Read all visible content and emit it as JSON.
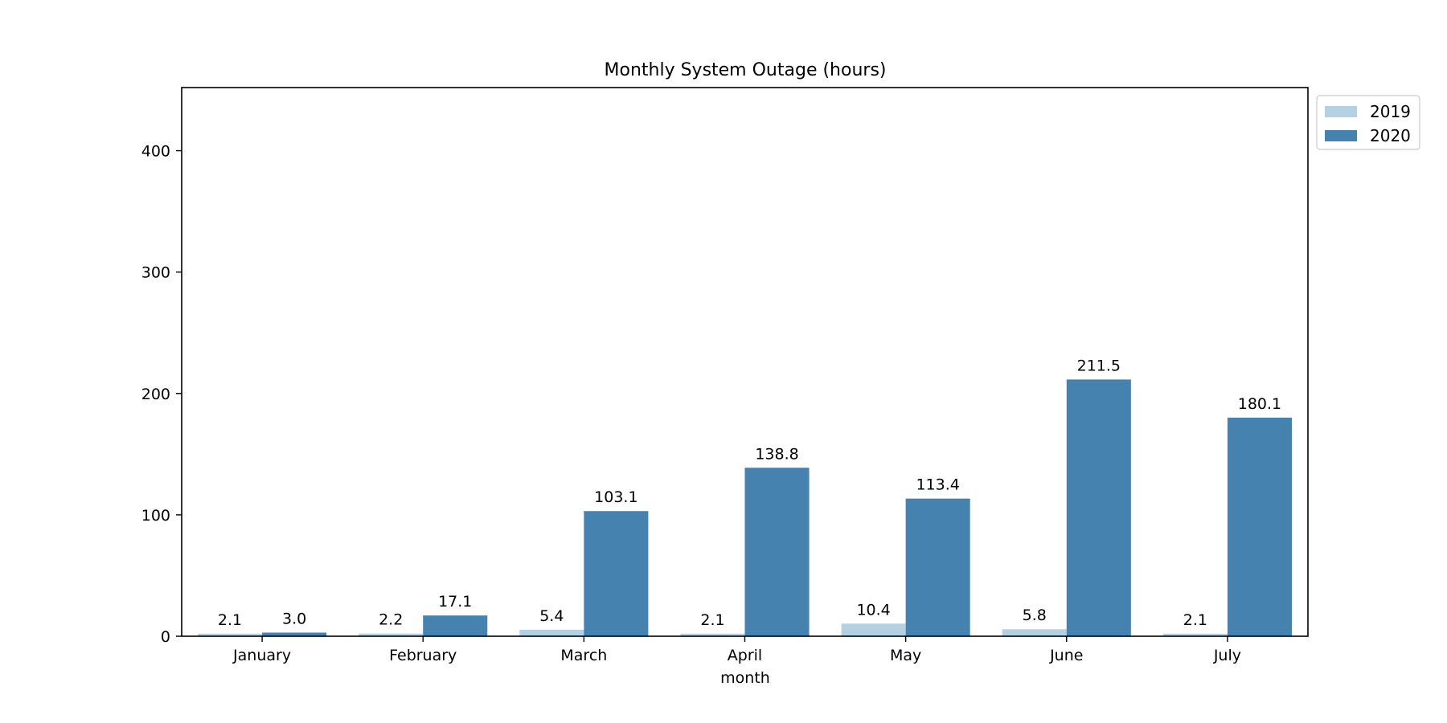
{
  "chart_data": {
    "type": "bar",
    "title": "Monthly System Outage (hours)",
    "xlabel": "month",
    "ylabel": "",
    "categories": [
      "January",
      "February",
      "March",
      "April",
      "May",
      "June",
      "July"
    ],
    "series": [
      {
        "name": "2019",
        "color": "#b3d1e3",
        "values": [
          2.1,
          2.2,
          5.4,
          2.1,
          10.4,
          5.8,
          2.1
        ]
      },
      {
        "name": "2020",
        "color": "#4682b0",
        "values": [
          3.0,
          17.1,
          103.1,
          138.8,
          113.4,
          211.5,
          180.1
        ]
      }
    ],
    "ylim": [
      0,
      452
    ],
    "yticks": [
      0,
      100,
      200,
      300,
      400
    ],
    "grid": false,
    "legend_position": "outside-top-right"
  }
}
